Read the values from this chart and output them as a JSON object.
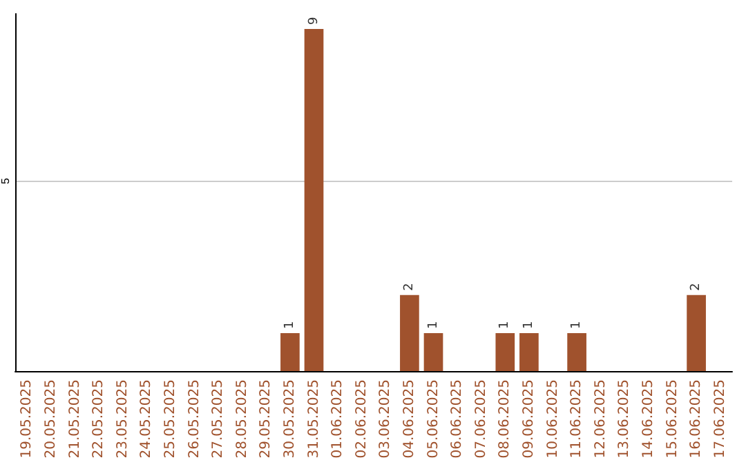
{
  "chart_data": {
    "type": "bar",
    "categories": [
      "19.05.2025",
      "20.05.2025",
      "21.05.2025",
      "22.05.2025",
      "23.05.2025",
      "24.05.2025",
      "25.05.2025",
      "26.05.2025",
      "27.05.2025",
      "28.05.2025",
      "29.05.2025",
      "30.05.2025",
      "31.05.2025",
      "01.06.2025",
      "02.06.2025",
      "03.06.2025",
      "04.06.2025",
      "05.06.2025",
      "06.06.2025",
      "07.06.2025",
      "08.06.2025",
      "09.06.2025",
      "10.06.2025",
      "11.06.2025",
      "12.06.2025",
      "13.06.2025",
      "14.06.2025",
      "15.06.2025",
      "16.06.2025",
      "17.06.2025"
    ],
    "values": [
      0,
      0,
      0,
      0,
      0,
      0,
      0,
      0,
      0,
      0,
      0,
      1,
      9,
      0,
      0,
      0,
      2,
      1,
      0,
      0,
      1,
      1,
      0,
      1,
      0,
      0,
      0,
      0,
      2,
      0
    ],
    "value_labels": [
      null,
      null,
      null,
      null,
      null,
      null,
      null,
      null,
      null,
      null,
      null,
      "1",
      "9",
      null,
      null,
      null,
      "2",
      "1",
      null,
      null,
      "1",
      "1",
      null,
      "1",
      null,
      null,
      null,
      null,
      "2",
      null
    ],
    "color": "#a0522d",
    "ylim": [
      0,
      9.4
    ],
    "yticks": [
      5
    ],
    "grid": "y"
  }
}
